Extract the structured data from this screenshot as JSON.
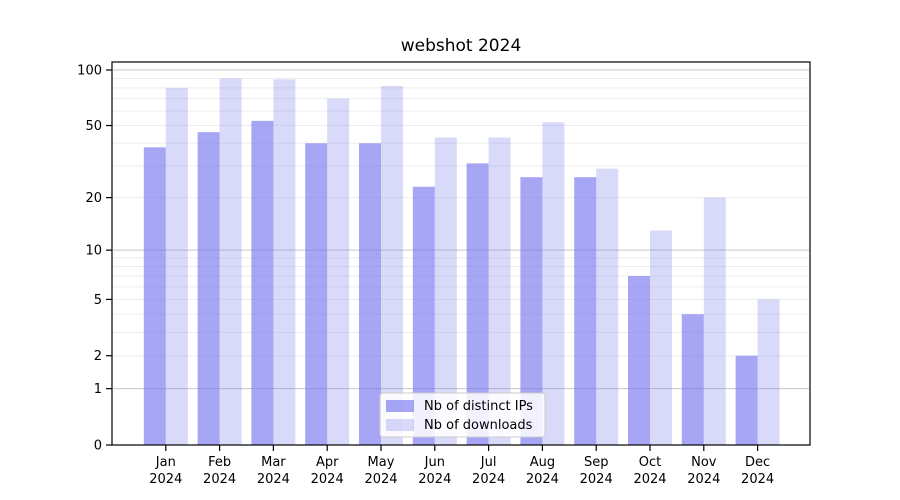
{
  "chart_data": {
    "type": "bar",
    "title": "webshot 2024",
    "categories": [
      "Jan",
      "Feb",
      "Mar",
      "Apr",
      "May",
      "Jun",
      "Jul",
      "Aug",
      "Sep",
      "Oct",
      "Nov",
      "Dec"
    ],
    "year_label": "2024",
    "series": [
      {
        "name": "Nb of distinct IPs",
        "color": "#7777ee",
        "fill": "rgba(119,119,238,0.65)",
        "values": [
          38,
          46,
          53,
          40,
          40,
          23,
          31,
          26,
          26,
          7,
          4,
          2
        ]
      },
      {
        "name": "Nb of downloads",
        "color": "#7777ee",
        "fill": "rgba(119,119,238,0.28)",
        "values": [
          80,
          90,
          89,
          70,
          82,
          43,
          43,
          52,
          29,
          13,
          20,
          5
        ]
      }
    ],
    "yscale": "log1p",
    "yticks": [
      0,
      1,
      2,
      5,
      10,
      20,
      50,
      100
    ],
    "ylim": [
      0,
      110
    ],
    "xlabel": "",
    "ylabel": "",
    "grid": {
      "orientation": "horizontal",
      "minor": [
        2,
        3,
        4,
        5,
        6,
        7,
        8,
        9,
        20,
        30,
        40,
        50,
        60,
        70,
        80,
        90
      ],
      "major": [
        1,
        10,
        100
      ]
    },
    "legend": {
      "position": "lower center",
      "entries": [
        "Nb of distinct IPs",
        "Nb of downloads"
      ]
    }
  }
}
